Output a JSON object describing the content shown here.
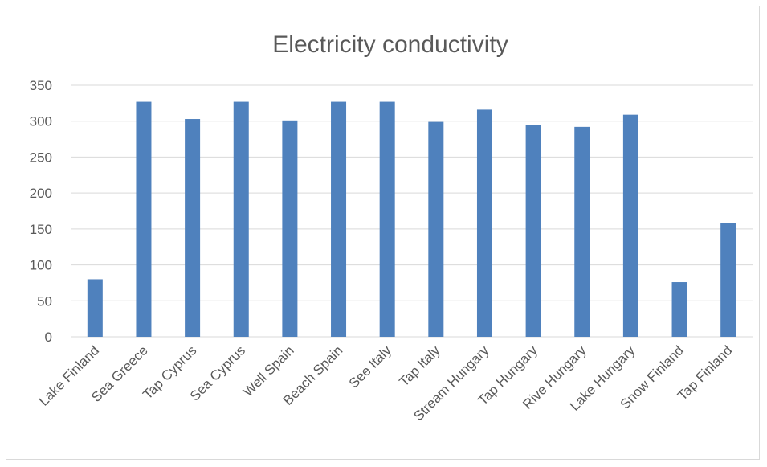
{
  "chart_data": {
    "type": "bar",
    "title": "Electricity conductivity",
    "xlabel": "",
    "ylabel": "",
    "categories": [
      "Lake Finland",
      "Sea Greece",
      "Tap Cyprus",
      "Sea Cyprus",
      "Well Spain",
      "Beach Spain",
      "See Italy",
      "Tap Italy",
      "Stream Hungary",
      "Tap Hungary",
      "Rive Hungary",
      "Lake Hungary",
      "Snow Finland",
      "Tap Finland"
    ],
    "values": [
      80,
      327,
      303,
      327,
      301,
      327,
      327,
      299,
      316,
      295,
      292,
      309,
      76,
      158
    ],
    "ylim": [
      0,
      350
    ],
    "yticks": [
      "0",
      "50",
      "100",
      "150",
      "200",
      "250",
      "300",
      "350"
    ],
    "grid": true,
    "legend": "none",
    "bar_color": "#4f81bd",
    "grid_color": "#d9d9d9",
    "text_color": "#595959"
  }
}
